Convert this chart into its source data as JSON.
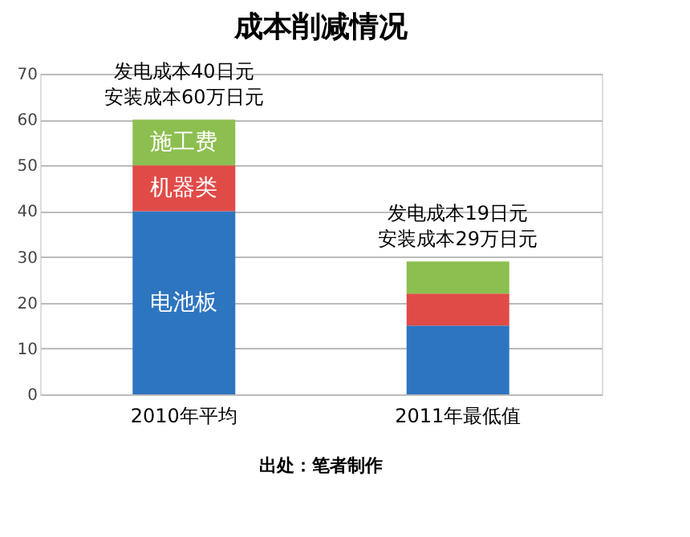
{
  "chart_data": {
    "type": "bar",
    "title": "成本削减情况",
    "stacked": true,
    "categories": [
      "2010年平均",
      "2011年最低值"
    ],
    "series": [
      {
        "name": "电池板",
        "color": "#2e75c0",
        "values": [
          40,
          15
        ]
      },
      {
        "name": "机器类",
        "color": "#e04b48",
        "values": [
          10,
          7
        ]
      },
      {
        "name": "施工费",
        "color": "#8cbf4f",
        "values": [
          10,
          7
        ]
      }
    ],
    "ylim": [
      0,
      70
    ],
    "yticks": [
      0,
      10,
      20,
      30,
      40,
      50,
      60,
      70
    ],
    "grid": "y",
    "legend": false,
    "annotations": [
      "发电成本40日元",
      "安装成本60万日元",
      "发电成本19日元",
      "安装成本29万日元",
      "出处：笔者制作"
    ]
  }
}
